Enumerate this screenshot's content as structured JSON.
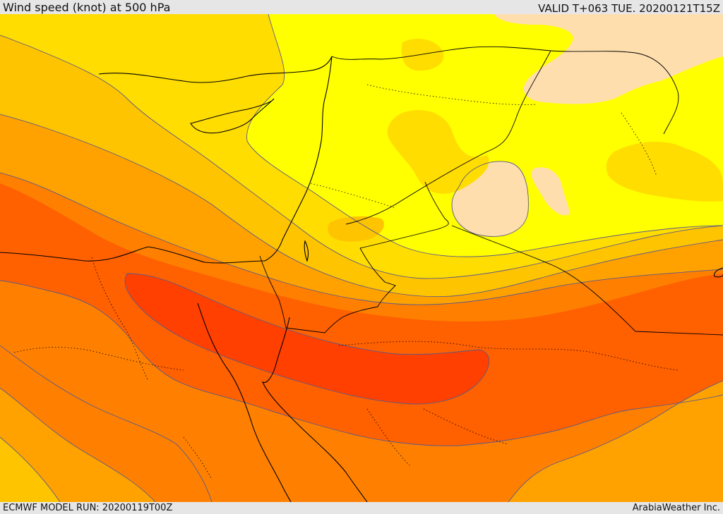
{
  "header": {
    "title": "Wind speed (knot) at 500 hPa",
    "valid": "VALID T+063 TUE. 20200121T15Z"
  },
  "footer": {
    "model_run": "ECMWF MODEL RUN: 20200119T00Z",
    "credit": "ArabiaWeather Inc."
  },
  "map": {
    "field": "wind speed at 500 hPa",
    "colors": {
      "very_low": "#ffdead",
      "low": "#ffff00",
      "low_mid": "#ffdd00",
      "mid": "#ffc400",
      "mid_high": "#ffa200",
      "high": "#ff8000",
      "higher": "#ff6000",
      "max": "#ff4000",
      "land_outline": "#000000",
      "contour_line": "#5a5a8a"
    }
  }
}
